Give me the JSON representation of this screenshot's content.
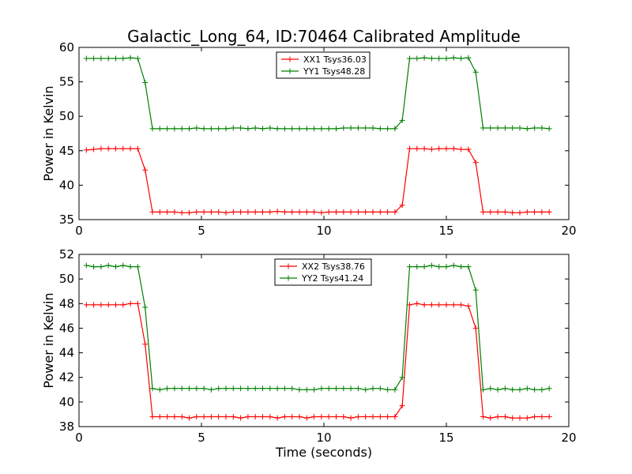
{
  "figure": {
    "title": "Galactic_Long_64, ID:70464 Calibrated Amplitude",
    "xlabel": "Time (seconds)"
  },
  "chart_data": [
    {
      "type": "line",
      "title": "Galactic_Long_64, ID:70464 Calibrated Amplitude",
      "xlabel": "",
      "ylabel": "Power in Kelvin",
      "xlim": [
        0,
        20
      ],
      "ylim": [
        35,
        60
      ],
      "xticks": [
        0,
        5,
        10,
        15,
        20
      ],
      "yticks": [
        35,
        40,
        45,
        50,
        55,
        60
      ],
      "grid": false,
      "legend_position": "top-center",
      "x": [
        0.3,
        0.6,
        0.9,
        1.2,
        1.5,
        1.8,
        2.1,
        2.4,
        2.7,
        3.0,
        3.3,
        3.6,
        3.9,
        4.2,
        4.5,
        4.8,
        5.1,
        5.4,
        5.7,
        6.0,
        6.3,
        6.6,
        6.9,
        7.2,
        7.5,
        7.8,
        8.1,
        8.4,
        8.7,
        9.0,
        9.3,
        9.6,
        9.9,
        10.2,
        10.5,
        10.8,
        11.1,
        11.4,
        11.7,
        12.0,
        12.3,
        12.6,
        12.9,
        13.2,
        13.5,
        13.8,
        14.1,
        14.4,
        14.7,
        15.0,
        15.3,
        15.6,
        15.9,
        16.2,
        16.5,
        16.8,
        17.1,
        17.4,
        17.7,
        18.0,
        18.3,
        18.6,
        18.9,
        19.2
      ],
      "series": [
        {
          "name": "XX1 Tsys36.03",
          "color": "#ff0000",
          "values": [
            45.1,
            45.2,
            45.3,
            45.3,
            45.3,
            45.3,
            45.3,
            45.3,
            42.2,
            36.1,
            36.1,
            36.1,
            36.1,
            36.0,
            36.0,
            36.1,
            36.1,
            36.1,
            36.1,
            36.0,
            36.1,
            36.1,
            36.1,
            36.1,
            36.1,
            36.1,
            36.2,
            36.1,
            36.1,
            36.1,
            36.1,
            36.1,
            36.0,
            36.1,
            36.1,
            36.1,
            36.1,
            36.1,
            36.1,
            36.1,
            36.1,
            36.1,
            36.1,
            37.1,
            45.3,
            45.3,
            45.3,
            45.2,
            45.3,
            45.3,
            45.3,
            45.2,
            45.2,
            43.3,
            36.1,
            36.1,
            36.1,
            36.1,
            36.0,
            36.0,
            36.1,
            36.1,
            36.1,
            36.1
          ]
        },
        {
          "name": "YY1 Tsys48.28",
          "color": "#008000",
          "values": [
            58.4,
            58.4,
            58.4,
            58.4,
            58.4,
            58.4,
            58.5,
            58.4,
            54.9,
            48.2,
            48.2,
            48.2,
            48.2,
            48.2,
            48.2,
            48.3,
            48.2,
            48.2,
            48.2,
            48.2,
            48.3,
            48.3,
            48.2,
            48.3,
            48.2,
            48.3,
            48.2,
            48.2,
            48.2,
            48.2,
            48.2,
            48.2,
            48.2,
            48.2,
            48.2,
            48.3,
            48.3,
            48.3,
            48.3,
            48.3,
            48.2,
            48.2,
            48.2,
            49.4,
            58.4,
            58.4,
            58.5,
            58.4,
            58.4,
            58.4,
            58.5,
            58.4,
            58.5,
            56.4,
            48.3,
            48.3,
            48.3,
            48.3,
            48.3,
            48.3,
            48.2,
            48.3,
            48.3,
            48.2
          ]
        }
      ]
    },
    {
      "type": "line",
      "title": "",
      "xlabel": "Time (seconds)",
      "ylabel": "Power in Kelvin",
      "xlim": [
        0,
        20
      ],
      "ylim": [
        38,
        52
      ],
      "xticks": [
        0,
        5,
        10,
        15,
        20
      ],
      "yticks": [
        38,
        40,
        42,
        44,
        46,
        48,
        50,
        52
      ],
      "grid": false,
      "legend_position": "top-center",
      "x": [
        0.3,
        0.6,
        0.9,
        1.2,
        1.5,
        1.8,
        2.1,
        2.4,
        2.7,
        3.0,
        3.3,
        3.6,
        3.9,
        4.2,
        4.5,
        4.8,
        5.1,
        5.4,
        5.7,
        6.0,
        6.3,
        6.6,
        6.9,
        7.2,
        7.5,
        7.8,
        8.1,
        8.4,
        8.7,
        9.0,
        9.3,
        9.6,
        9.9,
        10.2,
        10.5,
        10.8,
        11.1,
        11.4,
        11.7,
        12.0,
        12.3,
        12.6,
        12.9,
        13.2,
        13.5,
        13.8,
        14.1,
        14.4,
        14.7,
        15.0,
        15.3,
        15.6,
        15.9,
        16.2,
        16.5,
        16.8,
        17.1,
        17.4,
        17.7,
        18.0,
        18.3,
        18.6,
        18.9,
        19.2
      ],
      "series": [
        {
          "name": "XX2 Tsys38.76",
          "color": "#ff0000",
          "values": [
            47.9,
            47.9,
            47.9,
            47.9,
            47.9,
            47.9,
            48.0,
            48.0,
            44.7,
            38.8,
            38.8,
            38.8,
            38.8,
            38.8,
            38.7,
            38.8,
            38.8,
            38.8,
            38.8,
            38.8,
            38.8,
            38.7,
            38.8,
            38.8,
            38.8,
            38.8,
            38.7,
            38.8,
            38.8,
            38.8,
            38.7,
            38.8,
            38.8,
            38.8,
            38.8,
            38.8,
            38.7,
            38.8,
            38.8,
            38.8,
            38.8,
            38.8,
            38.8,
            39.7,
            47.9,
            48.0,
            47.9,
            47.9,
            47.9,
            47.9,
            47.9,
            47.9,
            47.8,
            46.0,
            38.8,
            38.7,
            38.8,
            38.8,
            38.7,
            38.7,
            38.7,
            38.8,
            38.8,
            38.8
          ]
        },
        {
          "name": "YY2 Tsys41.24",
          "color": "#008000",
          "values": [
            51.1,
            51.0,
            51.0,
            51.1,
            51.0,
            51.1,
            51.0,
            51.0,
            47.7,
            41.1,
            41.0,
            41.1,
            41.1,
            41.1,
            41.1,
            41.1,
            41.1,
            41.0,
            41.1,
            41.1,
            41.1,
            41.1,
            41.1,
            41.1,
            41.1,
            41.1,
            41.1,
            41.1,
            41.1,
            41.0,
            41.0,
            41.0,
            41.1,
            41.1,
            41.1,
            41.1,
            41.1,
            41.1,
            41.0,
            41.1,
            41.1,
            41.0,
            41.0,
            42.0,
            51.0,
            51.0,
            51.0,
            51.1,
            51.0,
            51.0,
            51.1,
            51.0,
            51.0,
            49.1,
            41.0,
            41.1,
            41.0,
            41.1,
            41.0,
            41.0,
            41.1,
            41.0,
            41.0,
            41.1
          ]
        }
      ]
    }
  ]
}
